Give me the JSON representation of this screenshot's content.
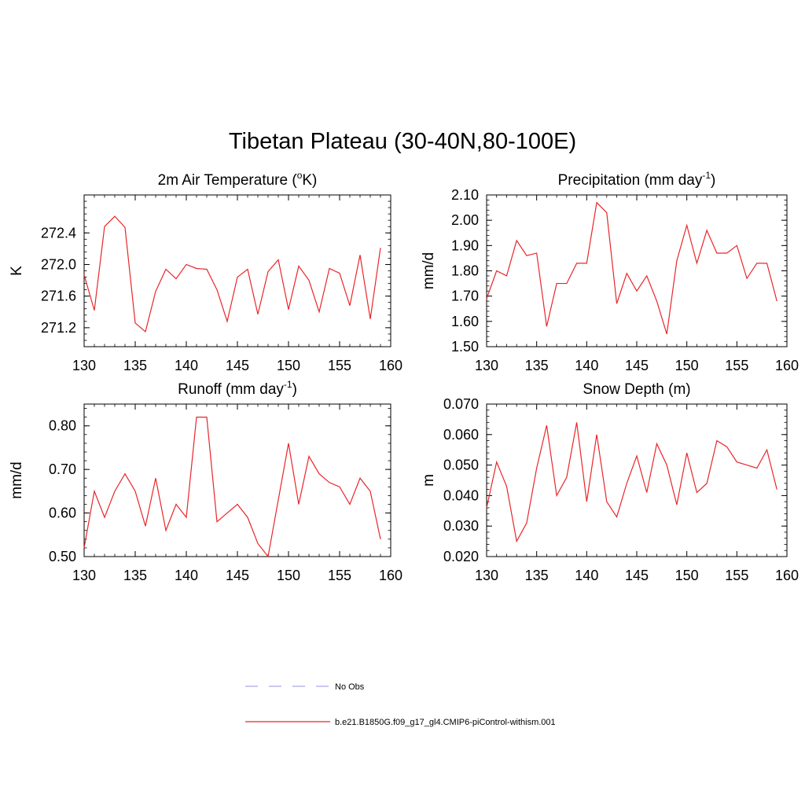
{
  "title": "Tibetan Plateau (30-40N,80-100E)",
  "colors": {
    "model_line": "#e8262a",
    "obs_line": "#a8a8e8",
    "axis": "#000000"
  },
  "legend": [
    {
      "label": "No Obs",
      "style": "dashed",
      "color": "#a8a8e8"
    },
    {
      "label": "b.e21.B1850G.f09_g17_gl4.CMIP6-piControl-withism.001",
      "style": "solid",
      "color": "#e8262a"
    }
  ],
  "chart_data": [
    {
      "type": "line",
      "title": "2m Air Temperature (°K)",
      "title_main": "2m Air Temperature (",
      "title_sup": "o",
      "title_end": "K)",
      "ylabel": "K",
      "xlim": [
        130,
        160
      ],
      "ylim": [
        270.96,
        272.88
      ],
      "xticks": [
        130,
        135,
        140,
        145,
        150,
        155,
        160
      ],
      "yticks": [
        271.2,
        271.6,
        272.0,
        272.4
      ],
      "yticklabels": [
        "271.2",
        "271.6",
        "272.0",
        "272.4"
      ],
      "x": [
        130,
        131,
        132,
        133,
        134,
        135,
        136,
        137,
        138,
        139,
        140,
        141,
        142,
        143,
        144,
        145,
        146,
        147,
        148,
        149,
        150,
        151,
        152,
        153,
        154,
        155,
        156,
        157,
        158,
        159
      ],
      "series": [
        {
          "values": [
            271.87,
            271.42,
            272.48,
            272.61,
            272.47,
            271.26,
            271.15,
            271.66,
            271.94,
            271.82,
            272.0,
            271.95,
            271.94,
            271.68,
            271.28,
            271.84,
            271.94,
            271.37,
            271.91,
            272.06,
            271.43,
            271.98,
            271.8,
            271.4,
            271.95,
            271.89,
            271.48,
            272.12,
            271.31,
            272.21
          ]
        }
      ]
    },
    {
      "type": "line",
      "title": "Precipitation (mm day-1)",
      "title_main": "Precipitation (mm day",
      "title_sup": "-1",
      "title_end": ")",
      "ylabel": "mm/d",
      "xlim": [
        130,
        160
      ],
      "ylim": [
        1.5,
        2.1
      ],
      "xticks": [
        130,
        135,
        140,
        145,
        150,
        155,
        160
      ],
      "yticks": [
        1.5,
        1.6,
        1.7,
        1.8,
        1.9,
        2.0,
        2.1
      ],
      "yticklabels": [
        "1.50",
        "1.60",
        "1.70",
        "1.80",
        "1.90",
        "2.00",
        "2.10"
      ],
      "x": [
        130,
        131,
        132,
        133,
        134,
        135,
        136,
        137,
        138,
        139,
        140,
        141,
        142,
        143,
        144,
        145,
        146,
        147,
        148,
        149,
        150,
        151,
        152,
        153,
        154,
        155,
        156,
        157,
        158,
        159
      ],
      "series": [
        {
          "values": [
            1.69,
            1.8,
            1.78,
            1.92,
            1.86,
            1.87,
            1.58,
            1.75,
            1.75,
            1.83,
            1.83,
            2.07,
            2.03,
            1.67,
            1.79,
            1.72,
            1.78,
            1.68,
            1.55,
            1.84,
            1.98,
            1.83,
            1.96,
            1.87,
            1.87,
            1.9,
            1.77,
            1.83,
            1.83,
            1.68
          ]
        }
      ]
    },
    {
      "type": "line",
      "title": "Runoff (mm day-1)",
      "title_main": "Runoff (mm day",
      "title_sup": "-1",
      "title_end": ")",
      "ylabel": "mm/d",
      "xlim": [
        130,
        160
      ],
      "ylim": [
        0.5,
        0.85
      ],
      "xticks": [
        130,
        135,
        140,
        145,
        150,
        155,
        160
      ],
      "yticks": [
        0.5,
        0.6,
        0.7,
        0.8
      ],
      "yticklabels": [
        "0.50",
        "0.60",
        "0.70",
        "0.80"
      ],
      "x": [
        130,
        131,
        132,
        133,
        134,
        135,
        136,
        137,
        138,
        139,
        140,
        141,
        142,
        143,
        144,
        145,
        146,
        147,
        148,
        149,
        150,
        151,
        152,
        153,
        154,
        155,
        156,
        157,
        158,
        159
      ],
      "series": [
        {
          "values": [
            0.52,
            0.65,
            0.59,
            0.65,
            0.69,
            0.65,
            0.57,
            0.68,
            0.56,
            0.62,
            0.59,
            0.82,
            0.82,
            0.58,
            0.6,
            0.62,
            0.59,
            0.53,
            0.5,
            0.63,
            0.76,
            0.62,
            0.73,
            0.69,
            0.67,
            0.66,
            0.62,
            0.68,
            0.65,
            0.54
          ]
        }
      ]
    },
    {
      "type": "line",
      "title": "Snow Depth (m)",
      "title_main": "Snow Depth (m)",
      "title_sup": "",
      "title_end": "",
      "ylabel": "m",
      "xlim": [
        130,
        160
      ],
      "ylim": [
        0.02,
        0.07
      ],
      "xticks": [
        130,
        135,
        140,
        145,
        150,
        155,
        160
      ],
      "yticks": [
        0.02,
        0.03,
        0.04,
        0.05,
        0.06,
        0.07
      ],
      "yticklabels": [
        "0.020",
        "0.030",
        "0.040",
        "0.050",
        "0.060",
        "0.070"
      ],
      "x": [
        130,
        131,
        132,
        133,
        134,
        135,
        136,
        137,
        138,
        139,
        140,
        141,
        142,
        143,
        144,
        145,
        146,
        147,
        148,
        149,
        150,
        151,
        152,
        153,
        154,
        155,
        156,
        157,
        158,
        159
      ],
      "series": [
        {
          "values": [
            0.036,
            0.051,
            0.043,
            0.025,
            0.031,
            0.049,
            0.063,
            0.04,
            0.046,
            0.064,
            0.038,
            0.06,
            0.038,
            0.033,
            0.044,
            0.053,
            0.041,
            0.057,
            0.05,
            0.037,
            0.054,
            0.041,
            0.044,
            0.058,
            0.056,
            0.051,
            0.05,
            0.049,
            0.055,
            0.042
          ]
        }
      ]
    }
  ]
}
